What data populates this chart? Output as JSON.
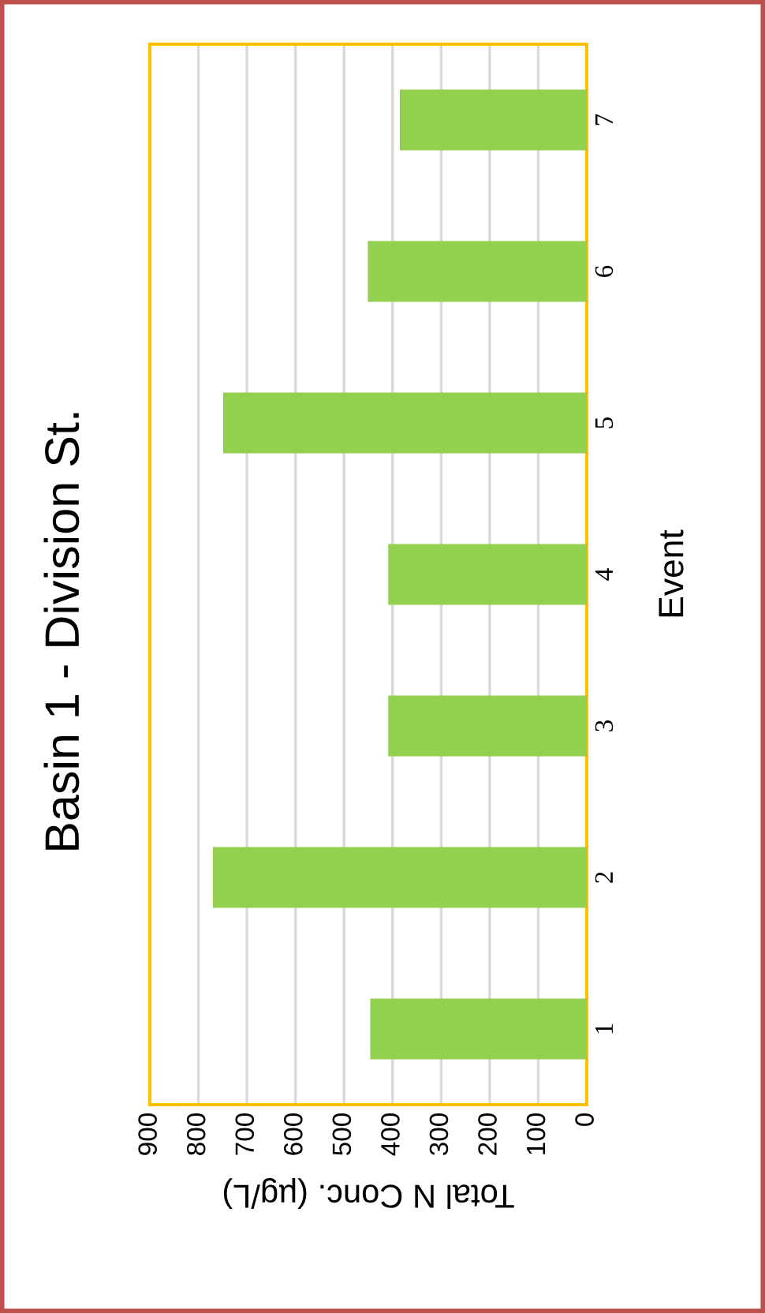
{
  "chart_data": {
    "type": "bar",
    "orientation": "horizontal",
    "title": "Basin 1 - Division St.",
    "xlabel": "Total N Conc. (µg/L)",
    "ylabel": "Event",
    "categories": [
      "7",
      "6",
      "5",
      "4",
      "3",
      "2",
      "1"
    ],
    "values": [
      385,
      451,
      749,
      409,
      409,
      770,
      446
    ],
    "color": "#92d050",
    "xlim": [
      900,
      0
    ],
    "xticks": [
      900,
      800,
      700,
      600,
      500,
      400,
      300,
      200,
      100,
      0
    ],
    "grid": "x"
  }
}
